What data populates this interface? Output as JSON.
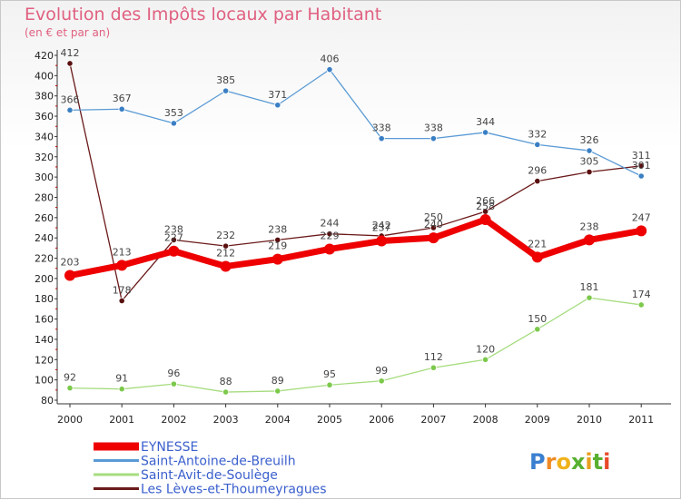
{
  "header": {
    "title": "Evolution des Impôts locaux par Habitant",
    "subtitle": "(en € et par an)"
  },
  "logo": {
    "text": "Proxiti"
  },
  "chart_data": {
    "type": "line",
    "categories": [
      "2000",
      "2001",
      "2002",
      "2003",
      "2004",
      "2005",
      "2006",
      "2007",
      "2008",
      "2009",
      "2010",
      "2011"
    ],
    "ylim": [
      80,
      420
    ],
    "ytick_step": 20,
    "grid": false,
    "legend_placement": "bottom-left",
    "series": [
      {
        "name": "Les Lèves-et-Thoumeyragues",
        "color": "#6b1a1a",
        "point_color": "#5a1010",
        "values": [
          412,
          178,
          238,
          232,
          238,
          244,
          242,
          250,
          266,
          296,
          305,
          311
        ]
      },
      {
        "name": "Saint-Antoine-de-Breuilh",
        "color": "#5b9bd5",
        "point_color": "#3a7fc4",
        "values": [
          366,
          367,
          353,
          385,
          371,
          406,
          338,
          338,
          344,
          332,
          326,
          301
        ]
      },
      {
        "name": "Saint-Avit-de-Soulège",
        "color": "#a6dc7f",
        "point_color": "#7cc94c",
        "values": [
          92,
          91,
          96,
          88,
          89,
          95,
          99,
          112,
          120,
          150,
          181,
          174
        ]
      },
      {
        "name": "EYNESSE",
        "color": "#ee0000",
        "point_color": "#ee0000",
        "values": [
          203,
          213,
          227,
          212,
          219,
          229,
          237,
          240,
          258,
          221,
          238,
          247
        ]
      }
    ],
    "legend_order": [
      "EYNESSE",
      "Saint-Antoine-de-Breuilh",
      "Saint-Avit-de-Soulège",
      "Les Lèves-et-Thoumeyragues"
    ]
  }
}
